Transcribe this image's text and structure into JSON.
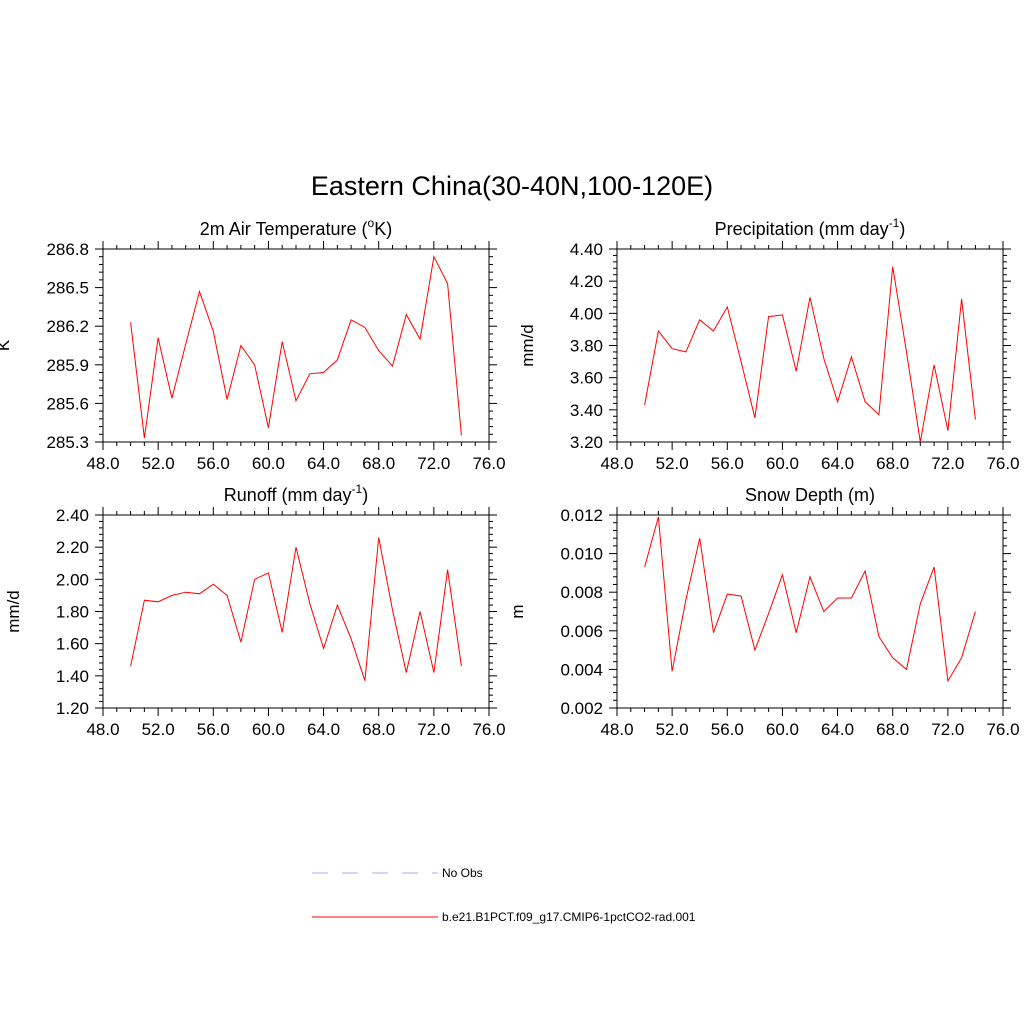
{
  "figure": {
    "title": "Eastern China(30-40N,100-120E)"
  },
  "chart_data": [
    {
      "type": "line",
      "title": "2m Air Temperature (",
      "title_sup": "o",
      "title_after": "K)",
      "ylabel": "K",
      "xlim": [
        48,
        76
      ],
      "ylim": [
        285.3,
        286.8
      ],
      "xticks": [
        "48.0",
        "52.0",
        "56.0",
        "60.0",
        "64.0",
        "68.0",
        "72.0",
        "76.0"
      ],
      "xtick_values": [
        48,
        52,
        56,
        60,
        64,
        68,
        72,
        76
      ],
      "yticks": [
        "285.3",
        "285.6",
        "285.9",
        "286.2",
        "286.5",
        "286.8"
      ],
      "ytick_values": [
        285.3,
        285.6,
        285.9,
        286.2,
        286.5,
        286.8
      ],
      "grid": false,
      "series": [
        {
          "name": "b.e21.B1PCT.f09_g17.CMIP6-1pctCO2-rad.001",
          "color": "#ff0000",
          "x": [
            50,
            51,
            52,
            53,
            54,
            55,
            56,
            57,
            58,
            59,
            60,
            61,
            62,
            63,
            64,
            65,
            66,
            67,
            68,
            69,
            70,
            71,
            72,
            73,
            74
          ],
          "values": [
            286.23,
            285.33,
            286.11,
            285.64,
            286.06,
            286.47,
            286.16,
            285.63,
            286.05,
            285.9,
            285.41,
            286.08,
            285.62,
            285.83,
            285.84,
            285.94,
            286.25,
            286.19,
            286.01,
            285.89,
            286.29,
            286.1,
            286.74,
            286.53,
            285.35
          ]
        }
      ]
    },
    {
      "type": "line",
      "title": "Precipitation (mm day",
      "title_sup": "-1",
      "title_after": ")",
      "ylabel": "mm/d",
      "xlim": [
        48,
        76
      ],
      "ylim": [
        3.2,
        4.4
      ],
      "xticks": [
        "48.0",
        "52.0",
        "56.0",
        "60.0",
        "64.0",
        "68.0",
        "72.0",
        "76.0"
      ],
      "xtick_values": [
        48,
        52,
        56,
        60,
        64,
        68,
        72,
        76
      ],
      "yticks": [
        "3.20",
        "3.40",
        "3.60",
        "3.80",
        "4.00",
        "4.20",
        "4.40"
      ],
      "ytick_values": [
        3.2,
        3.4,
        3.6,
        3.8,
        4.0,
        4.2,
        4.4
      ],
      "grid": false,
      "series": [
        {
          "name": "b.e21.B1PCT.f09_g17.CMIP6-1pctCO2-rad.001",
          "color": "#ff0000",
          "x": [
            50,
            51,
            52,
            53,
            54,
            55,
            56,
            57,
            58,
            59,
            60,
            61,
            62,
            63,
            64,
            65,
            66,
            67,
            68,
            69,
            70,
            71,
            72,
            73,
            74
          ],
          "values": [
            3.43,
            3.89,
            3.78,
            3.76,
            3.96,
            3.89,
            4.04,
            3.7,
            3.35,
            3.98,
            3.99,
            3.64,
            4.1,
            3.72,
            3.45,
            3.73,
            3.45,
            3.37,
            4.29,
            3.76,
            3.2,
            3.68,
            3.27,
            4.09,
            3.34
          ]
        }
      ]
    },
    {
      "type": "line",
      "title": "Runoff (mm day",
      "title_sup": "-1",
      "title_after": ")",
      "ylabel": "mm/d",
      "xlim": [
        48,
        76
      ],
      "ylim": [
        1.2,
        2.4
      ],
      "xticks": [
        "48.0",
        "52.0",
        "56.0",
        "60.0",
        "64.0",
        "68.0",
        "72.0",
        "76.0"
      ],
      "xtick_values": [
        48,
        52,
        56,
        60,
        64,
        68,
        72,
        76
      ],
      "yticks": [
        "1.20",
        "1.40",
        "1.60",
        "1.80",
        "2.00",
        "2.20",
        "2.40"
      ],
      "ytick_values": [
        1.2,
        1.4,
        1.6,
        1.8,
        2.0,
        2.2,
        2.4
      ],
      "grid": false,
      "series": [
        {
          "name": "b.e21.B1PCT.f09_g17.CMIP6-1pctCO2-rad.001",
          "color": "#ff0000",
          "x": [
            50,
            51,
            52,
            53,
            54,
            55,
            56,
            57,
            58,
            59,
            60,
            61,
            62,
            63,
            64,
            65,
            66,
            67,
            68,
            69,
            70,
            71,
            72,
            73,
            74
          ],
          "values": [
            1.46,
            1.87,
            1.86,
            1.9,
            1.92,
            1.91,
            1.97,
            1.9,
            1.61,
            2.0,
            2.04,
            1.67,
            2.2,
            1.85,
            1.57,
            1.84,
            1.63,
            1.37,
            2.26,
            1.81,
            1.42,
            1.8,
            1.42,
            2.06,
            1.46
          ]
        }
      ]
    },
    {
      "type": "line",
      "title": "Snow Depth (m)",
      "title_sup": "",
      "title_after": "",
      "ylabel": "m",
      "xlim": [
        48,
        76
      ],
      "ylim": [
        0.002,
        0.012
      ],
      "xticks": [
        "48.0",
        "52.0",
        "56.0",
        "60.0",
        "64.0",
        "68.0",
        "72.0",
        "76.0"
      ],
      "xtick_values": [
        48,
        52,
        56,
        60,
        64,
        68,
        72,
        76
      ],
      "yticks": [
        "0.002",
        "0.004",
        "0.006",
        "0.008",
        "0.010",
        "0.012"
      ],
      "ytick_values": [
        0.002,
        0.004,
        0.006,
        0.008,
        0.01,
        0.012
      ],
      "grid": false,
      "series": [
        {
          "name": "b.e21.B1PCT.f09_g17.CMIP6-1pctCO2-rad.001",
          "color": "#ff0000",
          "x": [
            50,
            51,
            52,
            53,
            54,
            55,
            56,
            57,
            58,
            59,
            60,
            61,
            62,
            63,
            64,
            65,
            66,
            67,
            68,
            69,
            70,
            71,
            72,
            73,
            74
          ],
          "values": [
            0.0093,
            0.0119,
            0.0039,
            0.0076,
            0.0108,
            0.0059,
            0.0079,
            0.0078,
            0.005,
            0.0069,
            0.0089,
            0.0059,
            0.0088,
            0.007,
            0.0077,
            0.0077,
            0.0091,
            0.0057,
            0.0046,
            0.004,
            0.0074,
            0.0093,
            0.0034,
            0.0046,
            0.007
          ]
        }
      ]
    }
  ],
  "legend": {
    "items": [
      {
        "label": "No Obs",
        "color": "#aaaaee",
        "style": "dashed"
      },
      {
        "label": "b.e21.B1PCT.f09_g17.CMIP6-1pctCO2-rad.001",
        "color": "#ff0000",
        "style": "solid"
      }
    ]
  }
}
